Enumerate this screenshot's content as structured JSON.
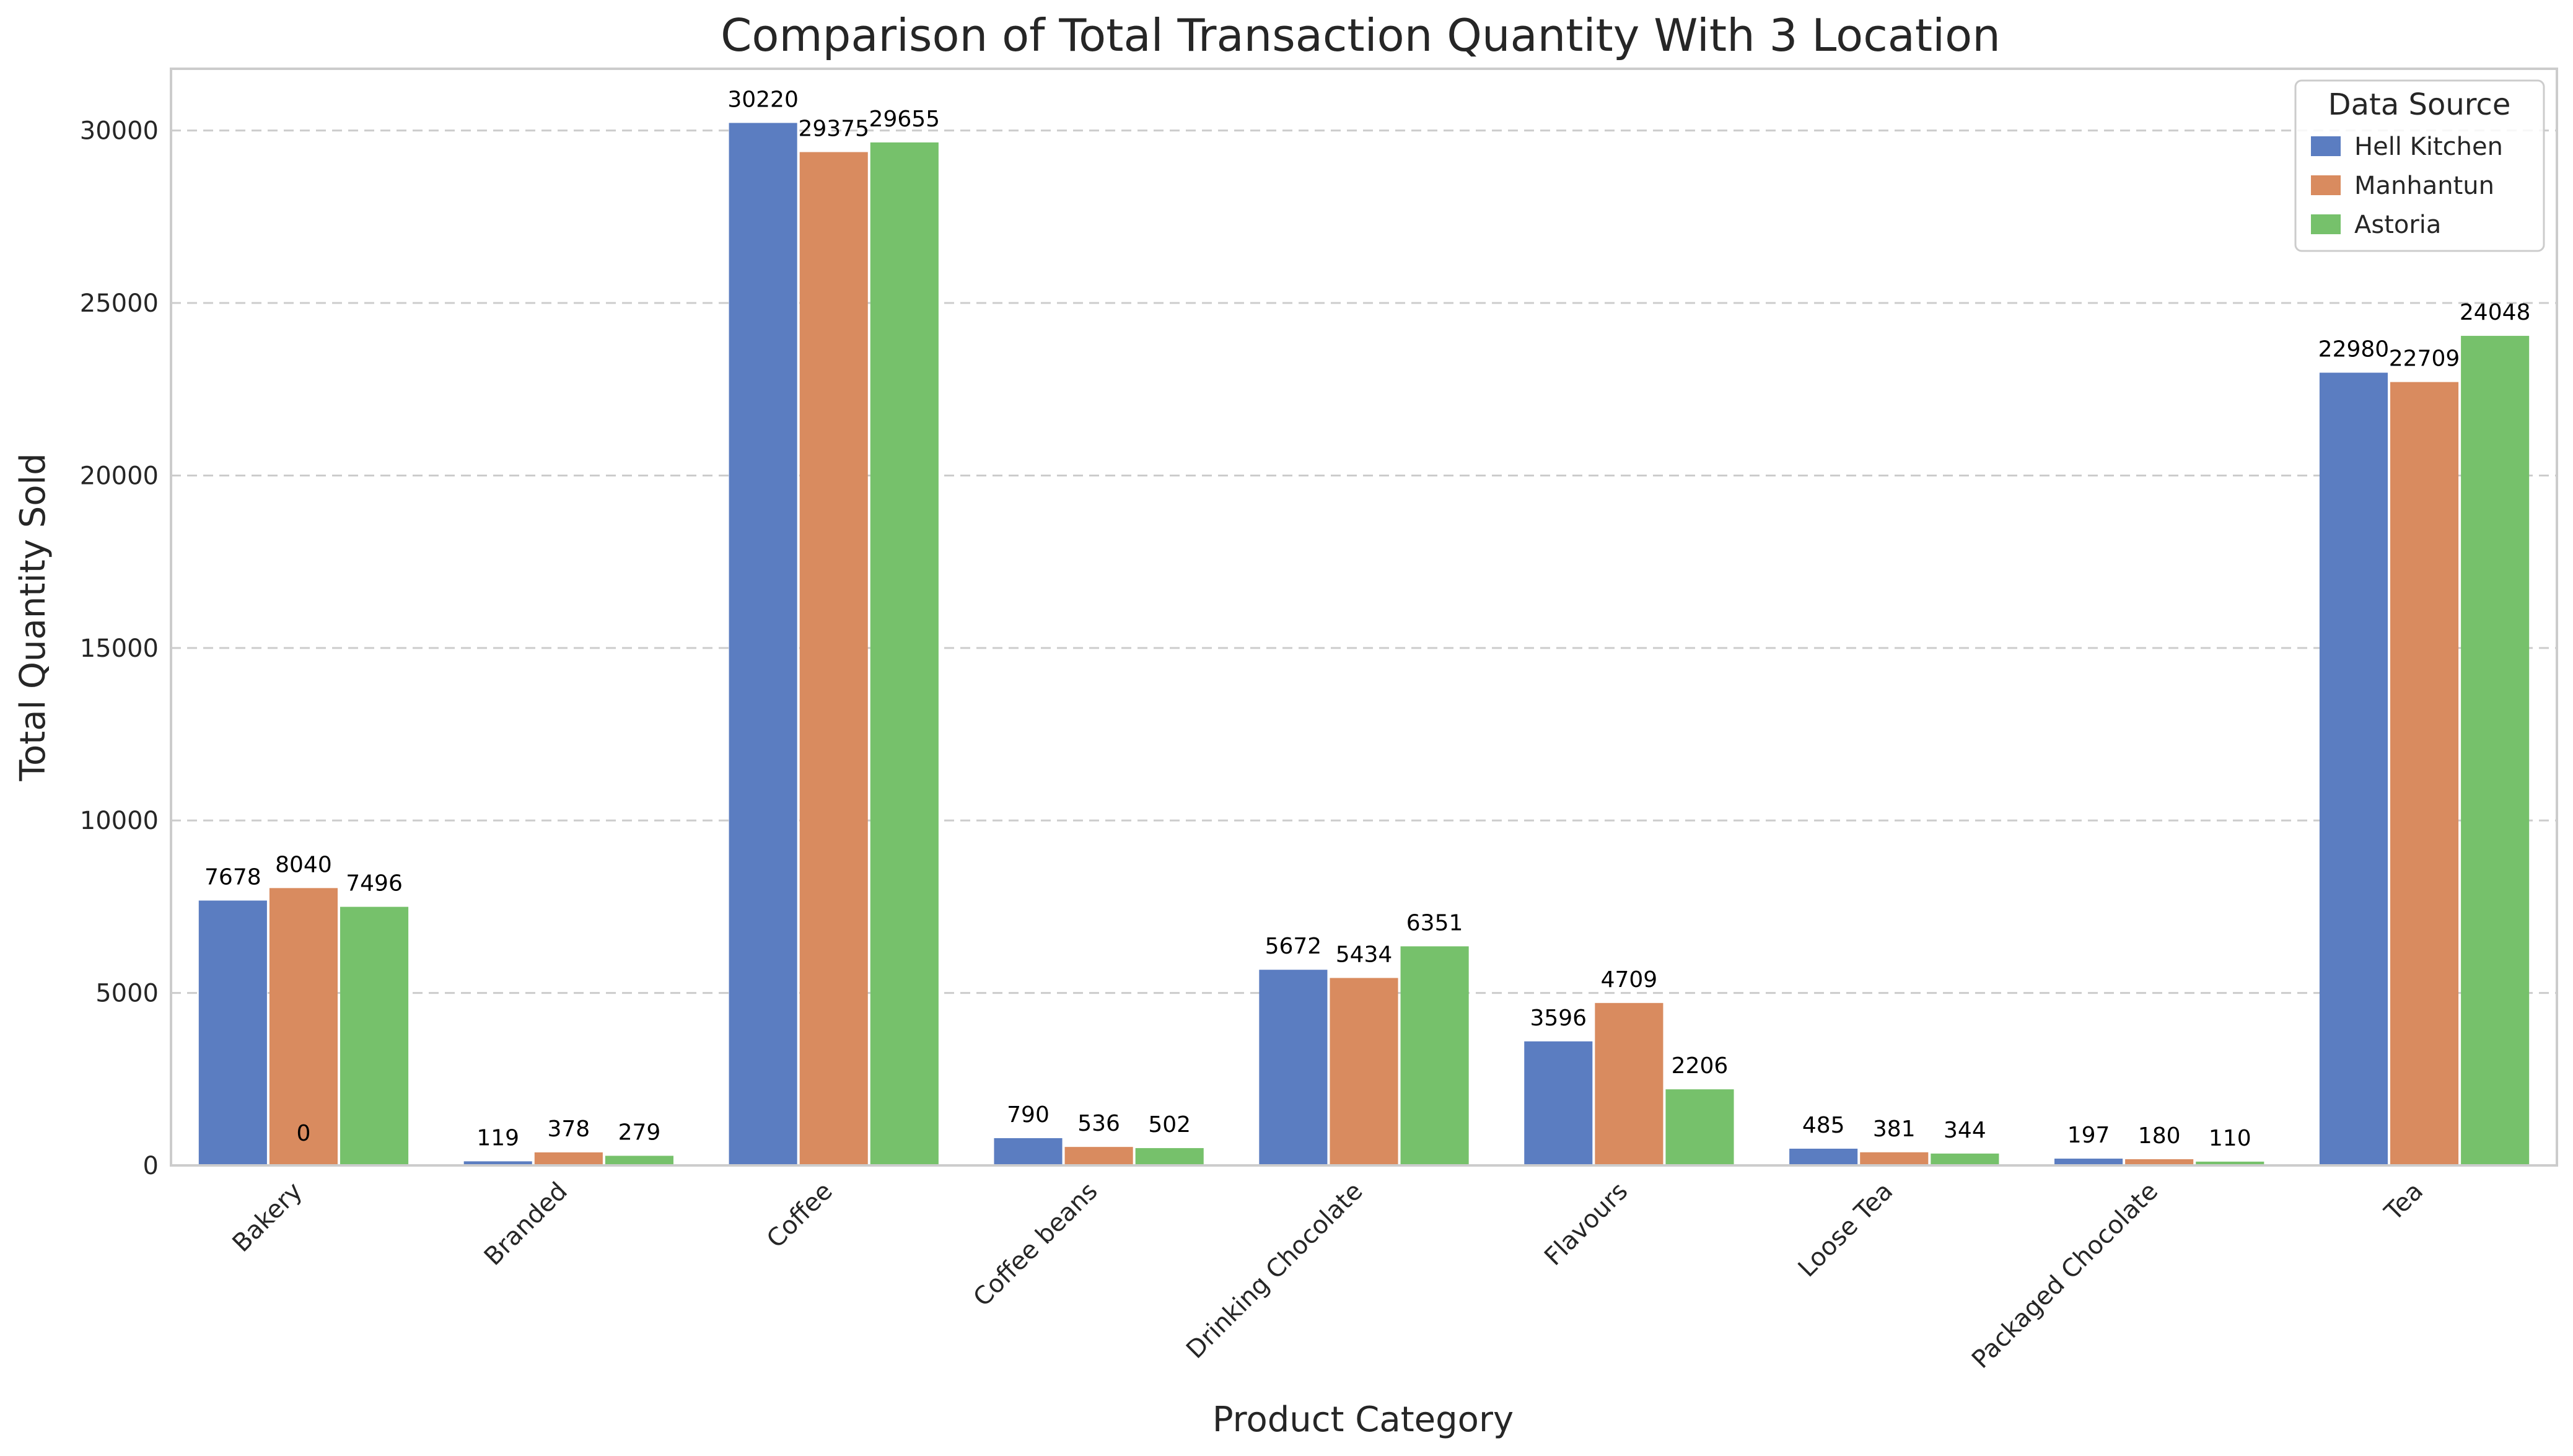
{
  "chart_data": {
    "type": "bar",
    "title": "Comparison of Total Transaction Quantity With 3 Location",
    "xlabel": "Product Category",
    "ylabel": "Total Quantity Sold",
    "ylim": [
      0,
      31790
    ],
    "yticks": [
      0,
      5000,
      10000,
      15000,
      20000,
      25000,
      30000
    ],
    "grid": true,
    "legend_title": "Data Source",
    "legend_position": "top-right",
    "categories": [
      "Bakery",
      "Branded",
      "Coffee",
      "Coffee beans",
      "Drinking Chocolate",
      "Flavours",
      "Loose Tea",
      "Packaged Chocolate",
      "Tea"
    ],
    "series": [
      {
        "name": "Hell Kitchen",
        "color": "#5b7dc1",
        "values": [
          7678,
          119,
          30220,
          790,
          5672,
          3596,
          485,
          197,
          22980
        ]
      },
      {
        "name": "Manhantun",
        "color": "#d98b5f",
        "values": [
          8040,
          378,
          29375,
          536,
          5434,
          4709,
          381,
          180,
          22709
        ]
      },
      {
        "name": "Astoria",
        "color": "#76c16b",
        "values": [
          7496,
          279,
          29655,
          502,
          6351,
          2206,
          344,
          110,
          24048
        ]
      }
    ],
    "annotations": [
      {
        "text": "0",
        "category": "Bakery",
        "series": "Manhantun"
      }
    ]
  }
}
